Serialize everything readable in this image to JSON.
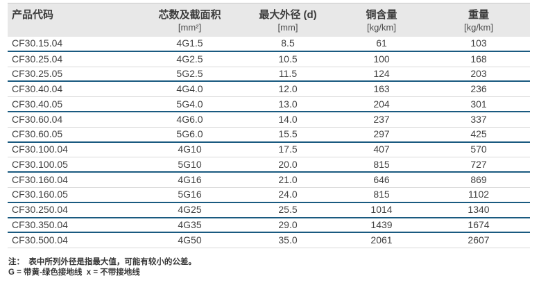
{
  "colors": {
    "header_bg": "#e8e8e8",
    "text": "#414141",
    "group_divider": "#1a5a80",
    "row_divider": "#d9d9d9"
  },
  "table": {
    "columns": [
      {
        "label": "产品代码",
        "unit": ""
      },
      {
        "label": "芯数及截面积",
        "unit": "[mm²]"
      },
      {
        "label": "最大外径 (d)",
        "unit": "[mm]"
      },
      {
        "label": "铜含量",
        "unit": "[kg/km]"
      },
      {
        "label": "重量",
        "unit": "[kg/km]"
      }
    ],
    "rows": [
      {
        "code": "CF30.15.04",
        "cores": "4G1.5",
        "od": "8.5",
        "copper": "61",
        "weight": "103",
        "divider": "thick"
      },
      {
        "code": "CF30.25.04",
        "cores": "4G2.5",
        "od": "10.5",
        "copper": "100",
        "weight": "168",
        "divider": "thin"
      },
      {
        "code": "CF30.25.05",
        "cores": "5G2.5",
        "od": "11.5",
        "copper": "124",
        "weight": "203",
        "divider": "thick"
      },
      {
        "code": "CF30.40.04",
        "cores": "4G4.0",
        "od": "12.0",
        "copper": "163",
        "weight": "236",
        "divider": "thin"
      },
      {
        "code": "CF30.40.05",
        "cores": "5G4.0",
        "od": "13.0",
        "copper": "204",
        "weight": "301",
        "divider": "thick"
      },
      {
        "code": "CF30.60.04",
        "cores": "4G6.0",
        "od": "14.0",
        "copper": "237",
        "weight": "337",
        "divider": "thin"
      },
      {
        "code": "CF30.60.05",
        "cores": "5G6.0",
        "od": "15.5",
        "copper": "297",
        "weight": "425",
        "divider": "thick"
      },
      {
        "code": "CF30.100.04",
        "cores": "4G10",
        "od": "17.5",
        "copper": "407",
        "weight": "570",
        "divider": "thin"
      },
      {
        "code": "CF30.100.05",
        "cores": "5G10",
        "od": "20.0",
        "copper": "815",
        "weight": "727",
        "divider": "thick"
      },
      {
        "code": "CF30.160.04",
        "cores": "4G16",
        "od": "21.0",
        "copper": "646",
        "weight": "869",
        "divider": "thin"
      },
      {
        "code": "CF30.160.05",
        "cores": "5G16",
        "od": "24.0",
        "copper": "815",
        "weight": "1102",
        "divider": "thick"
      },
      {
        "code": "CF30.250.04",
        "cores": "4G25",
        "od": "25.5",
        "copper": "1014",
        "weight": "1340",
        "divider": "thick"
      },
      {
        "code": "CF30.350.04",
        "cores": "4G35",
        "od": "29.0",
        "copper": "1439",
        "weight": "1674",
        "divider": "thick"
      },
      {
        "code": "CF30.500.04",
        "cores": "4G50",
        "od": "35.0",
        "copper": "2061",
        "weight": "2607",
        "divider": "thin"
      }
    ]
  },
  "notes": {
    "line1": "注：  表中所列外径是指最大值，可能有较小的公差。",
    "line2": "G = 带黄-绿色接地线  x = 不带接地线"
  }
}
